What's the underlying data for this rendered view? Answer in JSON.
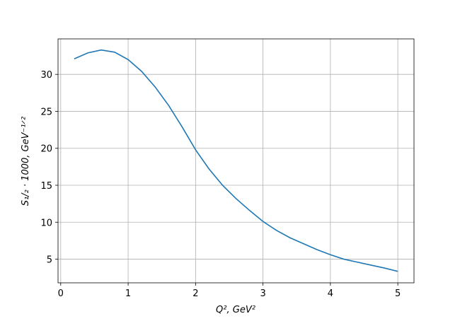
{
  "chart_data": {
    "type": "line",
    "x_label": "Q², GeV²",
    "y_label": "S₁/₂ · 1000, GeV⁻¹ᐟ²",
    "x": [
      0.2,
      0.4,
      0.6,
      0.8,
      1.0,
      1.2,
      1.4,
      1.6,
      1.8,
      2.0,
      2.2,
      2.4,
      2.6,
      2.8,
      3.0,
      3.2,
      3.4,
      3.6,
      3.8,
      4.0,
      4.2,
      4.4,
      4.6,
      4.8,
      5.0
    ],
    "series": [
      {
        "color": "#1f77b4",
        "values": [
          32.1,
          32.9,
          33.3,
          33.0,
          32.0,
          30.4,
          28.3,
          25.8,
          22.9,
          19.8,
          17.2,
          15.0,
          13.2,
          11.6,
          10.1,
          8.9,
          7.9,
          7.1,
          6.3,
          5.6,
          5.0,
          4.6,
          4.2,
          3.8,
          3.35
        ]
      }
    ],
    "xlim": [
      -0.04,
      5.24
    ],
    "ylim": [
      1.8,
      34.8
    ],
    "xticks": [
      0,
      1,
      2,
      3,
      4,
      5
    ],
    "yticks": [
      5,
      10,
      15,
      20,
      25,
      30
    ],
    "grid": true
  }
}
